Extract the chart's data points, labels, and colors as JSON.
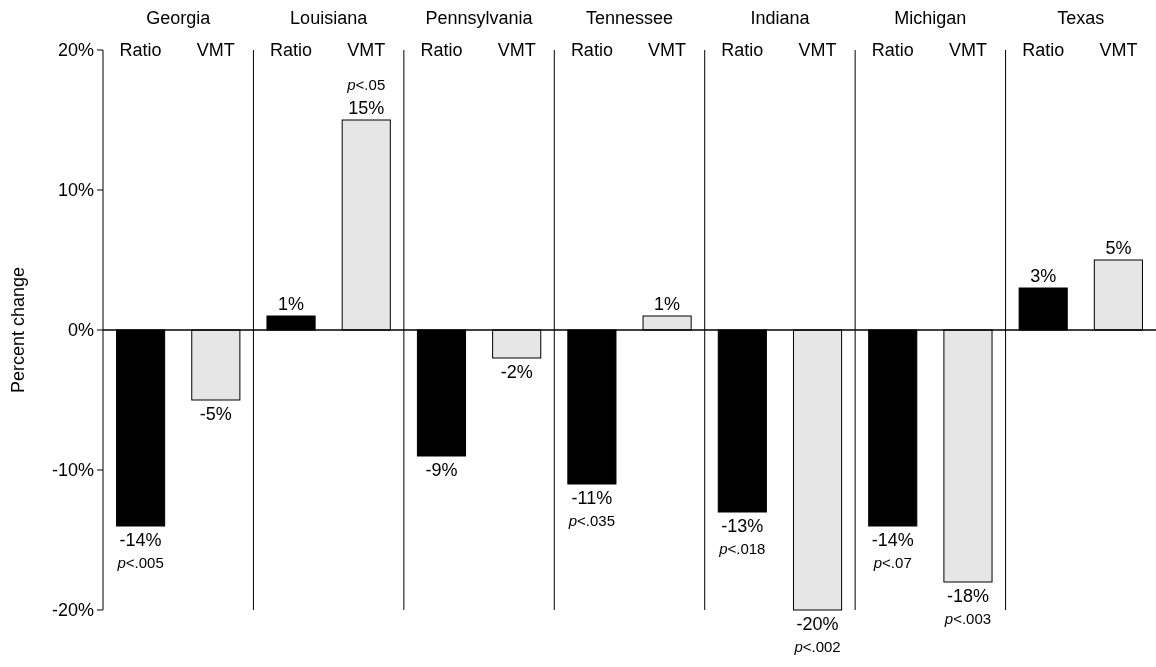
{
  "chart_data": [
    {
      "type": "bar",
      "title": "Georgia",
      "ylabel": "Percent change",
      "categories": [
        "Ratio",
        "VMT"
      ],
      "values": [
        -14,
        -5
      ],
      "colors": [
        "#000000",
        "#e6e6e6"
      ],
      "value_labels": [
        "-14%",
        "-5%"
      ],
      "ylim": [
        -20,
        20
      ],
      "yticks": [
        {
          "value": -20,
          "label": "-20%"
        },
        {
          "value": -10,
          "label": "-10%"
        },
        {
          "value": 0,
          "label": "0%"
        },
        {
          "value": 10,
          "label": "10%"
        },
        {
          "value": 20,
          "label": "20%"
        }
      ],
      "annotations": [
        {
          "text": "p<.005",
          "x": "Ratio",
          "y": -14
        }
      ]
    },
    {
      "type": "bar",
      "title": "Louisiana",
      "categories": [
        "Ratio",
        "VMT"
      ],
      "values": [
        1,
        15
      ],
      "colors": [
        "#000000",
        "#e6e6e6"
      ],
      "value_labels": [
        "1%",
        "15%"
      ],
      "ylim": [
        -20,
        20
      ],
      "tick_labels": "x",
      "annotations": [
        {
          "text": "p<.05",
          "x": "VMT",
          "y": 15
        }
      ]
    },
    {
      "type": "bar",
      "title": "Pennsylvania",
      "categories": [
        "Ratio",
        "VMT"
      ],
      "values": [
        -9,
        -2
      ],
      "colors": [
        "#000000",
        "#e6e6e6"
      ],
      "value_labels": [
        "-9%",
        "-2%"
      ],
      "ylim": [
        -20,
        20
      ],
      "tick_labels": "x"
    },
    {
      "type": "bar",
      "title": "Tennessee",
      "categories": [
        "Ratio",
        "VMT"
      ],
      "values": [
        -11,
        1
      ],
      "colors": [
        "#000000",
        "#e6e6e6"
      ],
      "value_labels": [
        "-11%",
        "1%"
      ],
      "ylim": [
        -20,
        20
      ],
      "tick_labels": "x",
      "annotations": [
        {
          "text": "p<.035",
          "x": "Ratio",
          "y": -11
        }
      ]
    },
    {
      "type": "bar",
      "title": "Indiana",
      "categories": [
        "Ratio",
        "VMT"
      ],
      "values": [
        -13,
        -20
      ],
      "colors": [
        "#000000",
        "#e6e6e6"
      ],
      "value_labels": [
        "-13%",
        "-20%"
      ],
      "ylim": [
        -20,
        20
      ],
      "tick_labels": "x",
      "annotations": [
        {
          "text": "p<.018",
          "x": "Ratio",
          "y": -13
        },
        {
          "text": "p<.002",
          "x": "VMT",
          "y": -20
        }
      ]
    },
    {
      "type": "bar",
      "title": "Michigan",
      "categories": [
        "Ratio",
        "VMT"
      ],
      "values": [
        -14,
        -18
      ],
      "colors": [
        "#000000",
        "#e6e6e6"
      ],
      "value_labels": [
        "-14%",
        "-18%"
      ],
      "ylim": [
        -20,
        20
      ],
      "tick_labels": "x",
      "annotations": [
        {
          "text": "p<.07",
          "x": "Ratio",
          "y": -14
        },
        {
          "text": "p<.003",
          "x": "VMT",
          "y": -18
        }
      ]
    },
    {
      "type": "bar",
      "title": "Texas",
      "categories": [
        "Ratio",
        "VMT"
      ],
      "values": [
        3,
        5
      ],
      "colors": [
        "#000000",
        "#e6e6e6"
      ],
      "value_labels": [
        "3%",
        "5%"
      ],
      "ylim": [
        -20,
        20
      ],
      "tick_labels": "x"
    }
  ]
}
